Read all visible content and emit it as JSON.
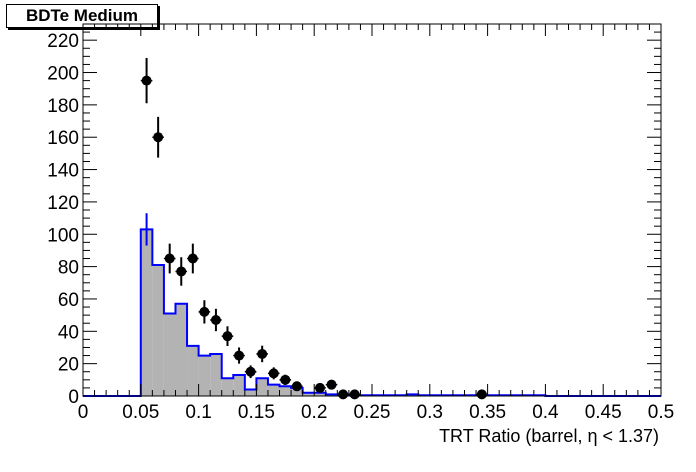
{
  "chart_data": {
    "type": "histogram",
    "title": "BDTe Medium",
    "xlabel": "TRT Ratio (barrel,  η < 1.37)",
    "ylabel": "",
    "xlim": [
      0,
      0.5
    ],
    "ylim": [
      0,
      230
    ],
    "bin_width": 0.01,
    "x_ticks": [
      0,
      0.05,
      0.1,
      0.15,
      0.2,
      0.25,
      0.3,
      0.35,
      0.4,
      0.45,
      0.5
    ],
    "x_tick_labels": [
      "0",
      "0.05",
      "0.1",
      "0.15",
      "0.2",
      "0.25",
      "0.3",
      "0.35",
      "0.4",
      "0.45",
      "0.5"
    ],
    "y_ticks": [
      0,
      20,
      40,
      60,
      80,
      100,
      120,
      140,
      160,
      180,
      200,
      220
    ],
    "y_tick_labels": [
      "0",
      "20",
      "40",
      "60",
      "80",
      "100",
      "120",
      "140",
      "160",
      "180",
      "200",
      "220"
    ],
    "grid": false,
    "series": [
      {
        "kind": "filled-histogram",
        "fill_color": "#b3b3b3",
        "line_color": "#0000ff",
        "bin_centers": [
          0.005,
          0.015,
          0.025,
          0.035,
          0.045,
          0.055,
          0.065,
          0.075,
          0.085,
          0.095,
          0.105,
          0.115,
          0.125,
          0.135,
          0.145,
          0.155,
          0.165,
          0.175,
          0.185,
          0.195,
          0.205,
          0.215,
          0.225,
          0.235,
          0.245,
          0.255,
          0.265,
          0.275,
          0.285,
          0.295,
          0.305,
          0.315,
          0.325,
          0.335,
          0.345,
          0.355,
          0.365,
          0.375,
          0.385,
          0.395,
          0.405,
          0.415,
          0.425,
          0.435,
          0.445,
          0.455,
          0.465,
          0.475,
          0.485,
          0.495
        ],
        "values": [
          0,
          0,
          0,
          0,
          0,
          103,
          81,
          51,
          57,
          31,
          25,
          26,
          11,
          13,
          4,
          11,
          7,
          6,
          5,
          2,
          2,
          1,
          1,
          0.5,
          0.5,
          0.5,
          0.5,
          0.5,
          1,
          0.5,
          0.5,
          0.5,
          0.5,
          0.5,
          0.5,
          0.5,
          0.5,
          0.5,
          0.5,
          0.5,
          0,
          0,
          0,
          0,
          0,
          0,
          0,
          0,
          0,
          0
        ],
        "error": {
          "bin_center": 0.055,
          "low": 93,
          "high": 113
        }
      },
      {
        "kind": "points-with-errors",
        "color": "#000000",
        "points": [
          {
            "x": 0.055,
            "y": 195,
            "err": 14
          },
          {
            "x": 0.065,
            "y": 160,
            "err": 12.6
          },
          {
            "x": 0.075,
            "y": 85,
            "err": 9.2
          },
          {
            "x": 0.085,
            "y": 77,
            "err": 8.8
          },
          {
            "x": 0.095,
            "y": 85,
            "err": 9.2
          },
          {
            "x": 0.105,
            "y": 52,
            "err": 7.2
          },
          {
            "x": 0.115,
            "y": 47,
            "err": 6.9
          },
          {
            "x": 0.125,
            "y": 37,
            "err": 6.1
          },
          {
            "x": 0.135,
            "y": 25,
            "err": 5
          },
          {
            "x": 0.145,
            "y": 15,
            "err": 3.9
          },
          {
            "x": 0.155,
            "y": 26,
            "err": 5.1
          },
          {
            "x": 0.165,
            "y": 14,
            "err": 3.7
          },
          {
            "x": 0.175,
            "y": 10,
            "err": 3.2
          },
          {
            "x": 0.185,
            "y": 6,
            "err": 2.4
          },
          {
            "x": 0.205,
            "y": 5,
            "err": 2.2
          },
          {
            "x": 0.215,
            "y": 7,
            "err": 2.6
          },
          {
            "x": 0.225,
            "y": 1,
            "err": 1
          },
          {
            "x": 0.235,
            "y": 1,
            "err": 1
          },
          {
            "x": 0.345,
            "y": 1,
            "err": 1
          }
        ]
      }
    ]
  }
}
